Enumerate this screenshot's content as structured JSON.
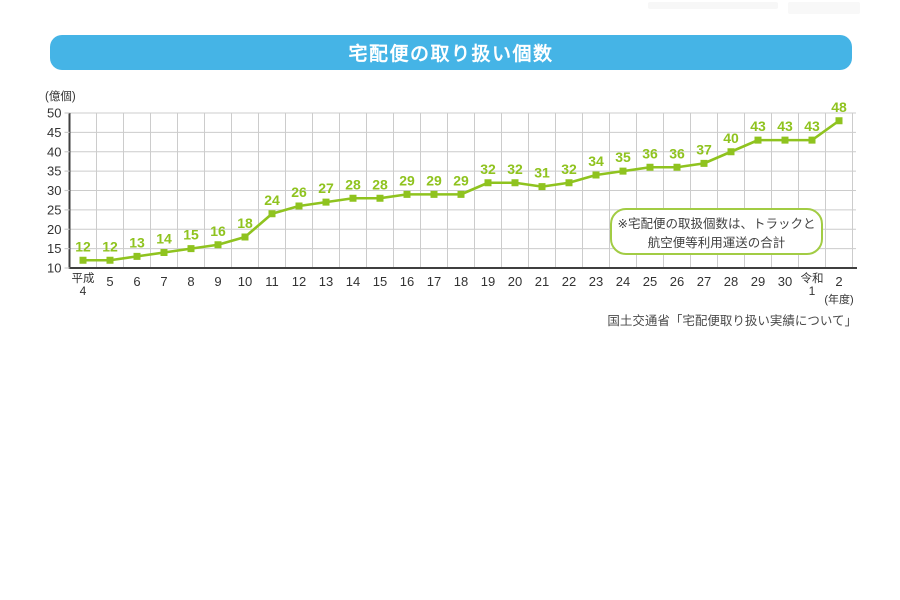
{
  "header": {
    "title": "宅配便の取り扱い個数",
    "bg_color": "#45b4e6",
    "text_color": "#ffffff"
  },
  "chart_data": {
    "type": "line",
    "title": "宅配便の取り扱い個数",
    "unit_label": "(億個)",
    "axis_suffix": "(年度)",
    "categories": [
      "平成4",
      "5",
      "6",
      "7",
      "8",
      "9",
      "10",
      "11",
      "12",
      "13",
      "14",
      "15",
      "16",
      "17",
      "18",
      "19",
      "20",
      "21",
      "22",
      "23",
      "24",
      "25",
      "26",
      "27",
      "28",
      "29",
      "30",
      "令和1",
      "2"
    ],
    "values": [
      12,
      12,
      13,
      14,
      15,
      16,
      18,
      24,
      26,
      27,
      28,
      28,
      29,
      29,
      29,
      32,
      32,
      31,
      32,
      34,
      35,
      36,
      36,
      37,
      40,
      43,
      43,
      43,
      48
    ],
    "ylim": [
      10,
      50
    ],
    "ytick_step": 5,
    "grid": true,
    "legend_position": "none",
    "line_color": "#8fc31f",
    "marker": "square",
    "value_label_color": "#8fc31f",
    "grid_color": "#cccccc",
    "axis_color": "#3f3f3f",
    "tick_label_color": "#333333"
  },
  "annotation": {
    "line1": "※宅配便の取扱個数は、トラックと",
    "line2": "航空便等利用運送の合計",
    "border_color": "#a2cc44"
  },
  "source": {
    "text": "国土交通省「宅配便取り扱い実績について」"
  }
}
